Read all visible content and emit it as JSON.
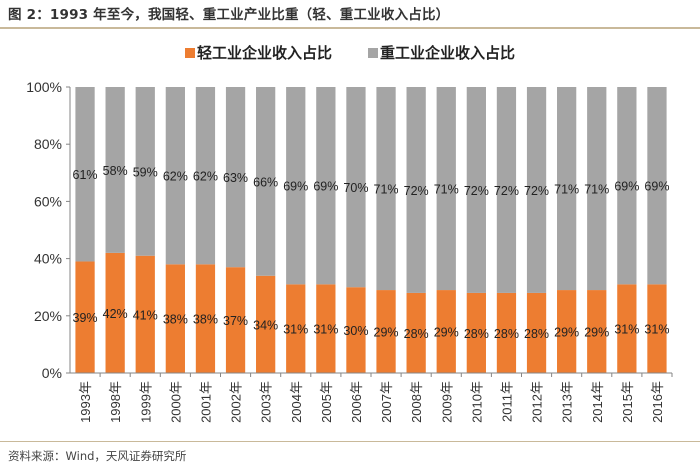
{
  "header": {
    "title": "图 2：1993 年至今，我国轻、重工业产业比重（轻、重工业收入占比）"
  },
  "footer": {
    "source": "资料来源：Wind，天风证券研究所"
  },
  "colors": {
    "light": "#ed7d31",
    "heavy": "#a5a5a5",
    "axis": "#868686",
    "rule": "#c9b99a"
  },
  "chart_data": {
    "type": "bar",
    "stacked": true,
    "percent_stacked": true,
    "title": "",
    "xlabel": "",
    "ylabel": "",
    "ylim": [
      0,
      100
    ],
    "yticks": [
      "0%",
      "20%",
      "40%",
      "60%",
      "80%",
      "100%"
    ],
    "legend_position": "top-center",
    "grid": false,
    "categories": [
      "1993年",
      "1998年",
      "1999年",
      "2000年",
      "2001年",
      "2002年",
      "2003年",
      "2004年",
      "2005年",
      "2006年",
      "2007年",
      "2008年",
      "2009年",
      "2010年",
      "2011年",
      "2012年",
      "2013年",
      "2014年",
      "2015年",
      "2016年"
    ],
    "series": [
      {
        "name": "轻工业企业收入占比",
        "color": "#ed7d31",
        "values": [
          39,
          42,
          41,
          38,
          38,
          37,
          34,
          31,
          31,
          30,
          29,
          28,
          29,
          28,
          28,
          28,
          29,
          29,
          31,
          31
        ],
        "labels": [
          "39%",
          "42%",
          "41%",
          "38%",
          "38%",
          "37%",
          "34%",
          "31%",
          "31%",
          "30%",
          "29%",
          "28%",
          "29%",
          "28%",
          "28%",
          "28%",
          "29%",
          "29%",
          "31%",
          "31%"
        ]
      },
      {
        "name": "重工业企业收入占比",
        "color": "#a5a5a5",
        "values": [
          61,
          58,
          59,
          62,
          62,
          63,
          66,
          69,
          69,
          70,
          71,
          72,
          71,
          72,
          72,
          72,
          71,
          71,
          69,
          69
        ],
        "labels": [
          "61%",
          "58%",
          "59%",
          "62%",
          "62%",
          "63%",
          "66%",
          "69%",
          "69%",
          "70%",
          "71%",
          "72%",
          "71%",
          "72%",
          "72%",
          "72%",
          "71%",
          "71%",
          "69%",
          "69%"
        ]
      }
    ]
  }
}
